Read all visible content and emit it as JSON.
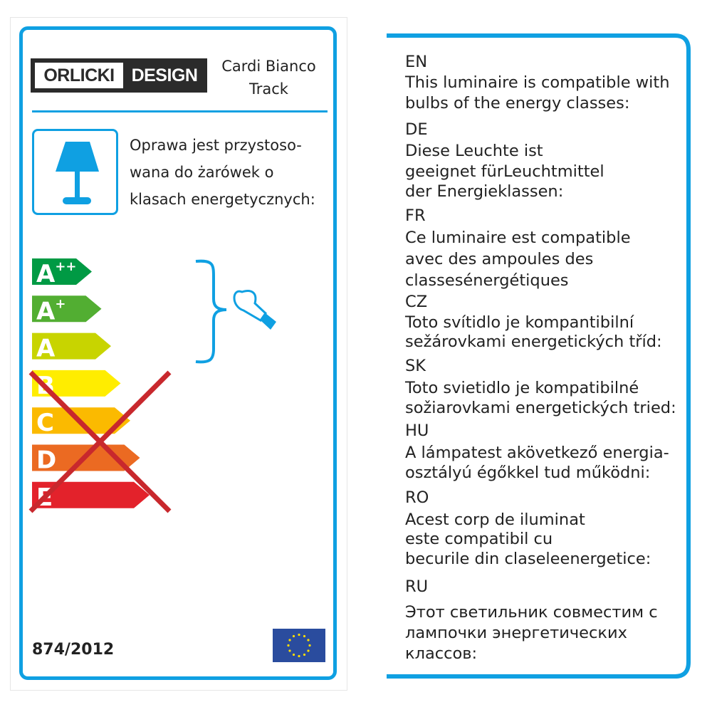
{
  "left_label": {
    "brand": {
      "word1": "ORLICKI",
      "word2": "DESIGN"
    },
    "product_name": [
      "Cardi Bianco",
      "Track"
    ],
    "icon": "table-lamp-icon",
    "polish_text": [
      "Oprawa jest przystoso-",
      "wana do żarówek o",
      "klasach energetycznych:"
    ],
    "energy_classes": [
      {
        "label": "A",
        "sup": "++",
        "color": "#009a44",
        "compatible": true
      },
      {
        "label": "A",
        "sup": "+",
        "color": "#52ae32",
        "compatible": true
      },
      {
        "label": "A",
        "sup": "",
        "color": "#c8d400",
        "compatible": true
      },
      {
        "label": "B",
        "sup": "",
        "color": "#ffed00",
        "compatible": false
      },
      {
        "label": "C",
        "sup": "",
        "color": "#fbba00",
        "compatible": false
      },
      {
        "label": "D",
        "sup": "",
        "color": "#eb6a22",
        "compatible": false
      },
      {
        "label": "E",
        "sup": "",
        "color": "#e3222b",
        "compatible": false
      }
    ],
    "cross_color": "#c8282d",
    "bulb_icon": "light-bulb-icon",
    "regulation": "874/2012",
    "flag_icon": "eu-flag-icon",
    "accent_color": "#0fa0e2"
  },
  "right_label": {
    "lines": [
      "EN",
      "This luminaire is compatible with",
      "bulbs of the energy classes:",
      "DE",
      "Diese Leuchte ist",
      "geeignet fürLeuchtmittel",
      "der Energieklassen:",
      "FR",
      "Ce luminaire est compatible",
      "avec des ampoules des",
      "classesénergétiques",
      "CZ",
      "Toto svítidlo je kompantibilní",
      "sežárovkami energetických tříd:",
      "SK",
      "Toto svietidlo je kompatibilné",
      "sožiarovkami energetických tried:",
      "HU",
      "A lámpatest akövetkező energia-",
      "osztályú égőkkel tud működni:",
      "RO",
      "Acest corp de iluminat",
      "este compatibil cu",
      "becurile din claseleenergetice:",
      "RU",
      "Этот светильник совместим с",
      "лампочки энергетических",
      "классов:"
    ]
  }
}
